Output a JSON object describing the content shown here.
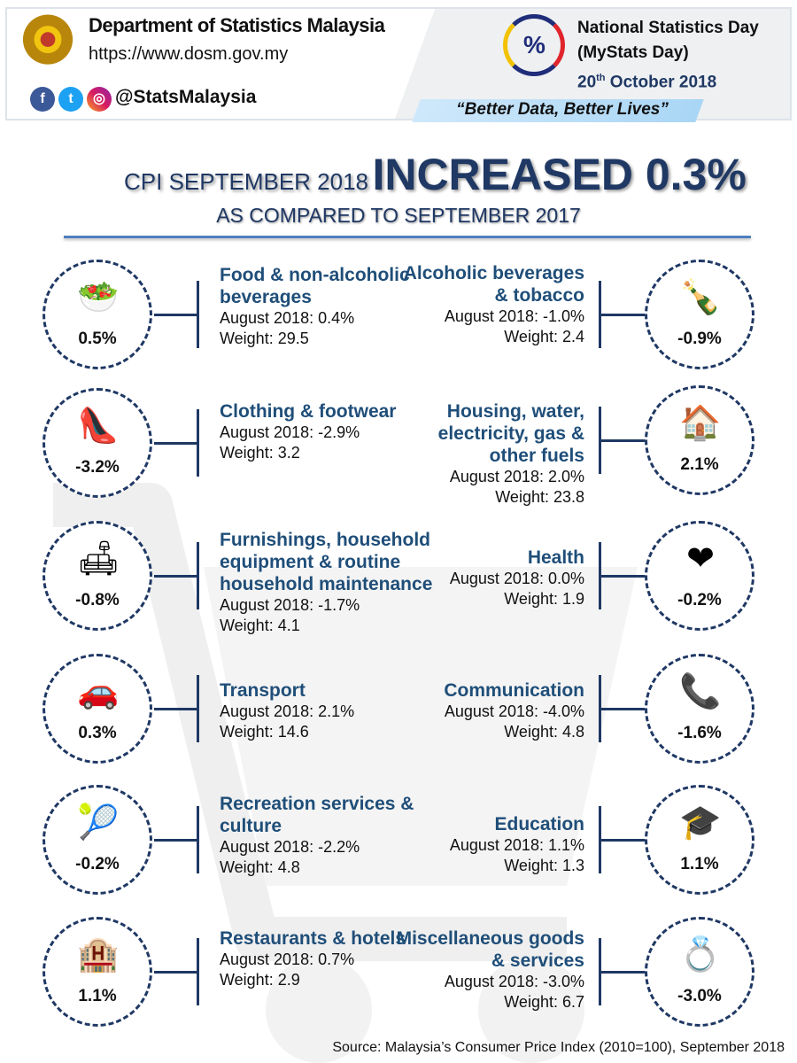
{
  "header": {
    "org": "Department of Statistics Malaysia",
    "url": "https://www.dosm.gov.my",
    "handle": "@StatsMalaysia",
    "event_line1": "National Statistics Day",
    "event_line2": "(MyStats Day)",
    "event_date_day": "20",
    "event_date_sup": "th",
    "event_date_rest": " October 2018",
    "tagline": "“Better Data, Better Lives”",
    "logo_symbol": "%"
  },
  "title": {
    "prefix": "CPI SEPTEMBER 2018",
    "headline": "INCREASED 0.3%",
    "subtitle": "AS COMPARED TO SEPTEMBER 2017"
  },
  "left": [
    {
      "title": "Food & non-alcoholic beverages",
      "aug": "August 2018: 0.4%",
      "weight": "Weight: 29.5",
      "value": "0.5%",
      "icon": "food-icon",
      "glyph": "🥗"
    },
    {
      "title": "Clothing & footwear",
      "aug": "August 2018: -2.9%",
      "weight": "Weight: 3.2",
      "value": "-3.2%",
      "icon": "shoe-bag-icon",
      "glyph": "👠"
    },
    {
      "title": "Furnishings, household equipment & routine household maintenance",
      "aug": "August 2018: -1.7%",
      "weight": "Weight: 4.1",
      "value": "-0.8%",
      "icon": "sofa-icon",
      "glyph": "🛋"
    },
    {
      "title": "Transport",
      "aug": "August 2018: 2.1%",
      "weight": "Weight: 14.6",
      "value": "0.3%",
      "icon": "car-fuel-icon",
      "glyph": "🚗"
    },
    {
      "title": "Recreation services & culture",
      "aug": "August 2018: -2.2%",
      "weight": "Weight: 4.8",
      "value": "-0.2%",
      "icon": "sports-icon",
      "glyph": "🎾"
    },
    {
      "title": "Restaurants & hotels",
      "aug": "August 2018: 0.7%",
      "weight": "Weight: 2.9",
      "value": "1.1%",
      "icon": "hotel-icon",
      "glyph": "🏨"
    }
  ],
  "right": [
    {
      "title": "Alcoholic beverages & tobacco",
      "aug": "August 2018: -1.0%",
      "weight": "Weight: 2.4",
      "value": "-0.9%",
      "icon": "bottle-cigarette-icon",
      "glyph": "🍾"
    },
    {
      "title": "Housing, water, electricity, gas & other fuels",
      "aug": "August 2018: 2.0%",
      "weight": "Weight: 23.8",
      "value": "2.1%",
      "icon": "house-icon",
      "glyph": "🏠"
    },
    {
      "title": "Health",
      "aug": "August 2018: 0.0%",
      "weight": "Weight: 1.9",
      "value": "-0.2%",
      "icon": "heart-pulse-icon",
      "glyph": "❤"
    },
    {
      "title": "Communication",
      "aug": "August 2018: -4.0%",
      "weight": "Weight: 4.8",
      "value": "-1.6%",
      "icon": "telephone-icon",
      "glyph": "📞"
    },
    {
      "title": "Education",
      "aug": "August 2018: 1.1%",
      "weight": "Weight: 1.3",
      "value": "1.1%",
      "icon": "graduation-books-icon",
      "glyph": "🎓"
    },
    {
      "title": "Miscellaneous goods & services",
      "aug": "August 2018: -3.0%",
      "weight": "Weight: 6.7",
      "value": "-3.0%",
      "icon": "rings-icon",
      "glyph": "💍"
    }
  ],
  "source": "Source: Malaysia’s Consumer Price Index (2010=100), September 2018"
}
